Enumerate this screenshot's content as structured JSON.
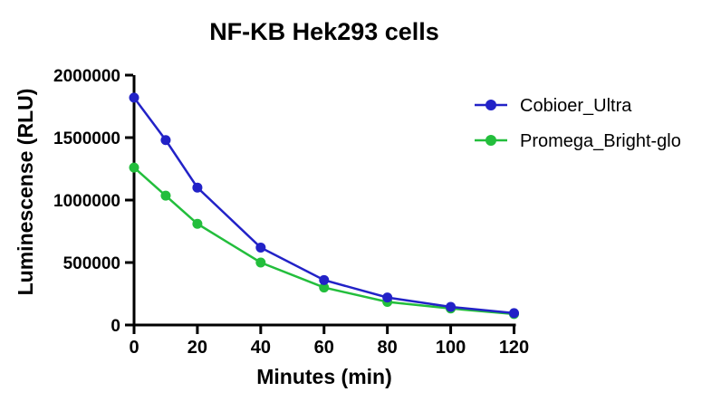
{
  "figure": {
    "background": "#ffffff",
    "axis_color": "#000000",
    "text_color": "#000000"
  },
  "chart_data": {
    "type": "line",
    "title": "NF-KB Hek293 cells",
    "xlabel": "Minutes (min)",
    "ylabel": "Luminescense (RLU)",
    "x": [
      0,
      10,
      20,
      40,
      60,
      80,
      100,
      120
    ],
    "series": [
      {
        "name": "Cobioer_Ultra",
        "color": "#2222c7",
        "values": [
          1820000,
          1480000,
          1100000,
          620000,
          360000,
          220000,
          145000,
          95000
        ]
      },
      {
        "name": "Promega_Bright-glo",
        "color": "#23be3c",
        "values": [
          1260000,
          1035000,
          810000,
          500000,
          300000,
          185000,
          132000,
          88000
        ]
      }
    ],
    "xlim": [
      0,
      120
    ],
    "ylim": [
      0,
      2000000
    ],
    "x_ticks": [
      0,
      20,
      40,
      60,
      80,
      100,
      120
    ],
    "x_tick_labels": [
      "0",
      "20",
      "40",
      "60",
      "80",
      "100",
      "120"
    ],
    "y_ticks": [
      0,
      500000,
      1000000,
      1500000,
      2000000
    ],
    "y_tick_labels": [
      "0",
      "500000",
      "1000000",
      "1500000",
      "2000000"
    ],
    "grid": false,
    "legend_position": "right",
    "marker": "circle"
  }
}
